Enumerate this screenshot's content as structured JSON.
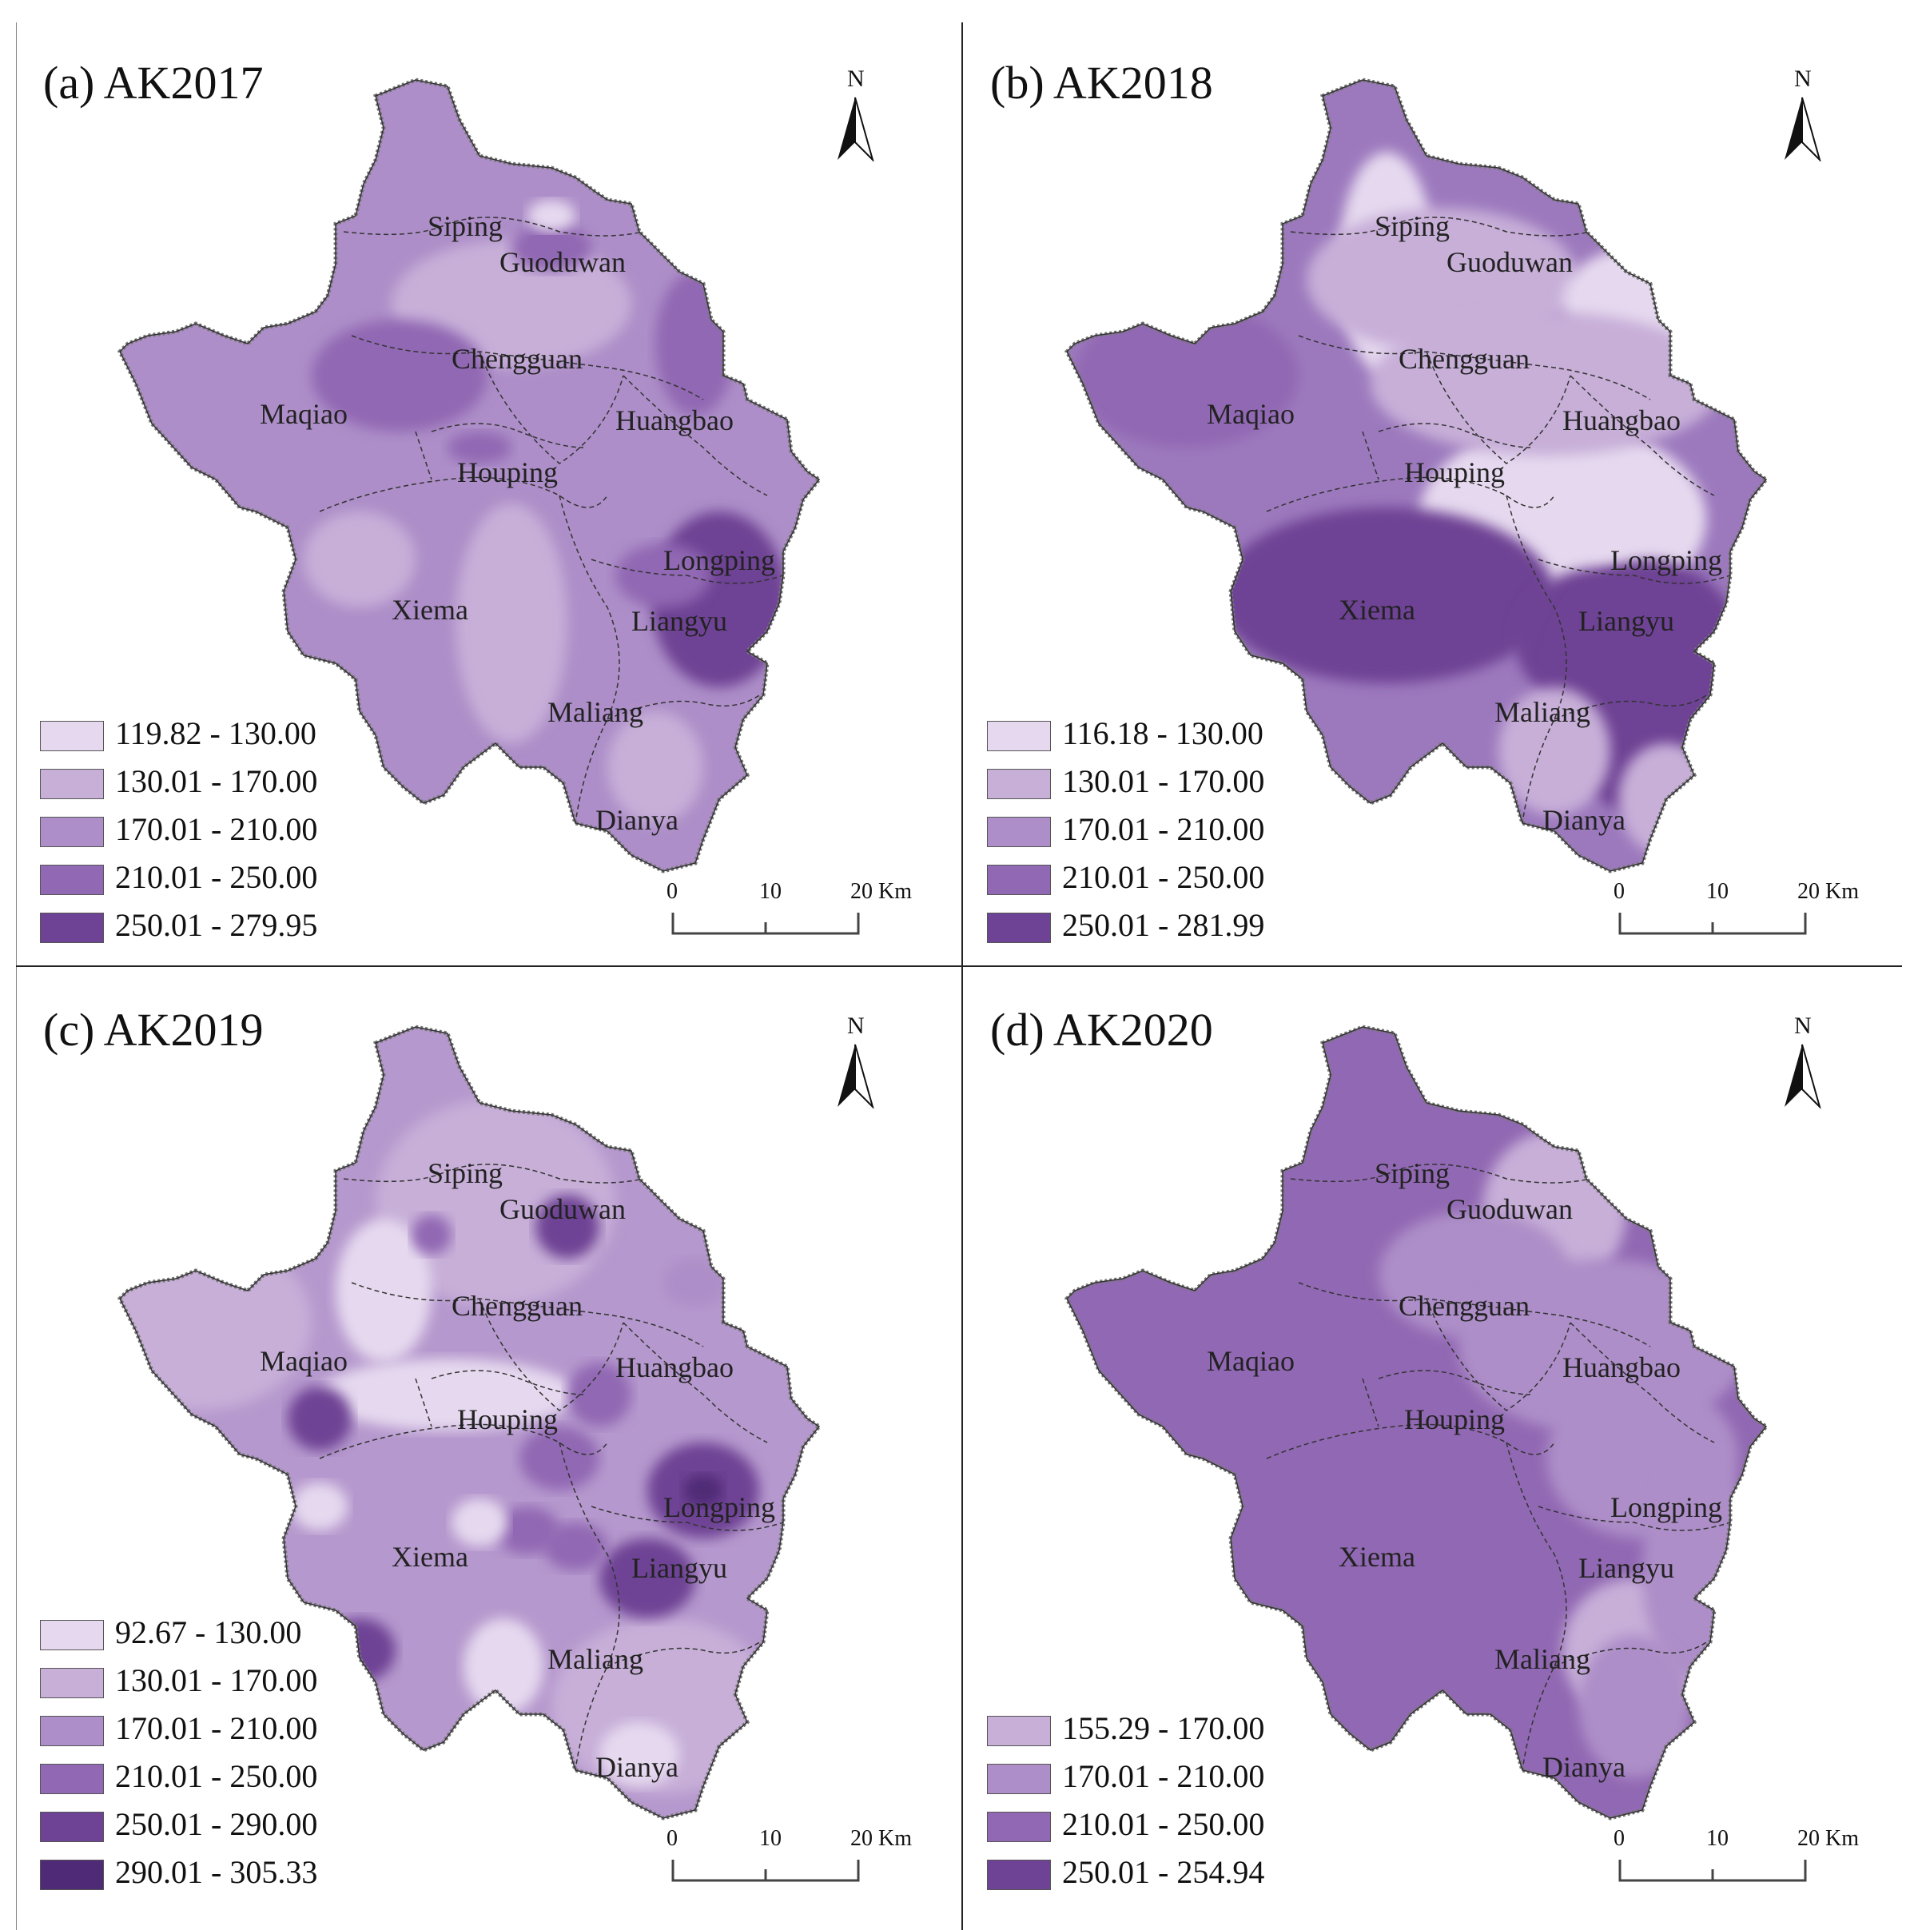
{
  "figure": {
    "panels": [
      {
        "id": "a",
        "title": "(a) AK2017",
        "legend": [
          {
            "label": "119.82 - 130.00",
            "color": "#e6d9ef"
          },
          {
            "label": "130.01 - 170.00",
            "color": "#c7afd8"
          },
          {
            "label": "170.01 - 210.00",
            "color": "#ad8ec8"
          },
          {
            "label": "210.01 - 250.00",
            "color": "#9168b3"
          },
          {
            "label": "250.01 - 279.95",
            "color": "#6e4294"
          }
        ],
        "base_color": "#ad8ec8"
      },
      {
        "id": "b",
        "title": "(b) AK2018",
        "legend": [
          {
            "label": "116.18 - 130.00",
            "color": "#e6d9ef"
          },
          {
            "label": "130.01 - 170.00",
            "color": "#c7afd8"
          },
          {
            "label": "170.01 - 210.00",
            "color": "#ad8ec8"
          },
          {
            "label": "210.01 - 250.00",
            "color": "#9168b3"
          },
          {
            "label": "250.01 - 281.99",
            "color": "#6e4294"
          }
        ],
        "base_color": "#9c79bd"
      },
      {
        "id": "c",
        "title": "(c) AK2019",
        "legend": [
          {
            "label": "92.67 - 130.00",
            "color": "#e6d9ef"
          },
          {
            "label": "130.01 - 170.00",
            "color": "#c7afd8"
          },
          {
            "label": "170.01 - 210.00",
            "color": "#ad8ec8"
          },
          {
            "label": "210.01 - 250.00",
            "color": "#9168b3"
          },
          {
            "label": "250.01 - 290.00",
            "color": "#6e4294"
          },
          {
            "label": "290.01 - 305.33",
            "color": "#4f2a76"
          }
        ],
        "base_color": "#b598cd"
      },
      {
        "id": "d",
        "title": "(d) AK2020",
        "legend": [
          {
            "label": "155.29 - 170.00",
            "color": "#c7afd8"
          },
          {
            "label": "170.01 - 210.00",
            "color": "#ad8ec8"
          },
          {
            "label": "210.01 - 250.00",
            "color": "#9168b3"
          },
          {
            "label": "250.01 - 254.94",
            "color": "#6e4294"
          }
        ],
        "base_color": "#9168b3"
      }
    ],
    "place_names": {
      "siping": "Siping",
      "guoduwan": "Guoduwan",
      "chengguan": "Chengguan",
      "maqiao": "Maqiao",
      "huangbao": "Huangbao",
      "houping": "Houping",
      "longping": "Longping",
      "xiema": "Xiema",
      "liangyu": "Liangyu",
      "maliang": "Maliang",
      "dianya": "Dianya"
    },
    "north_label": "N",
    "scale_bar": {
      "ticks": [
        "0",
        "10",
        "20 Km"
      ]
    }
  }
}
